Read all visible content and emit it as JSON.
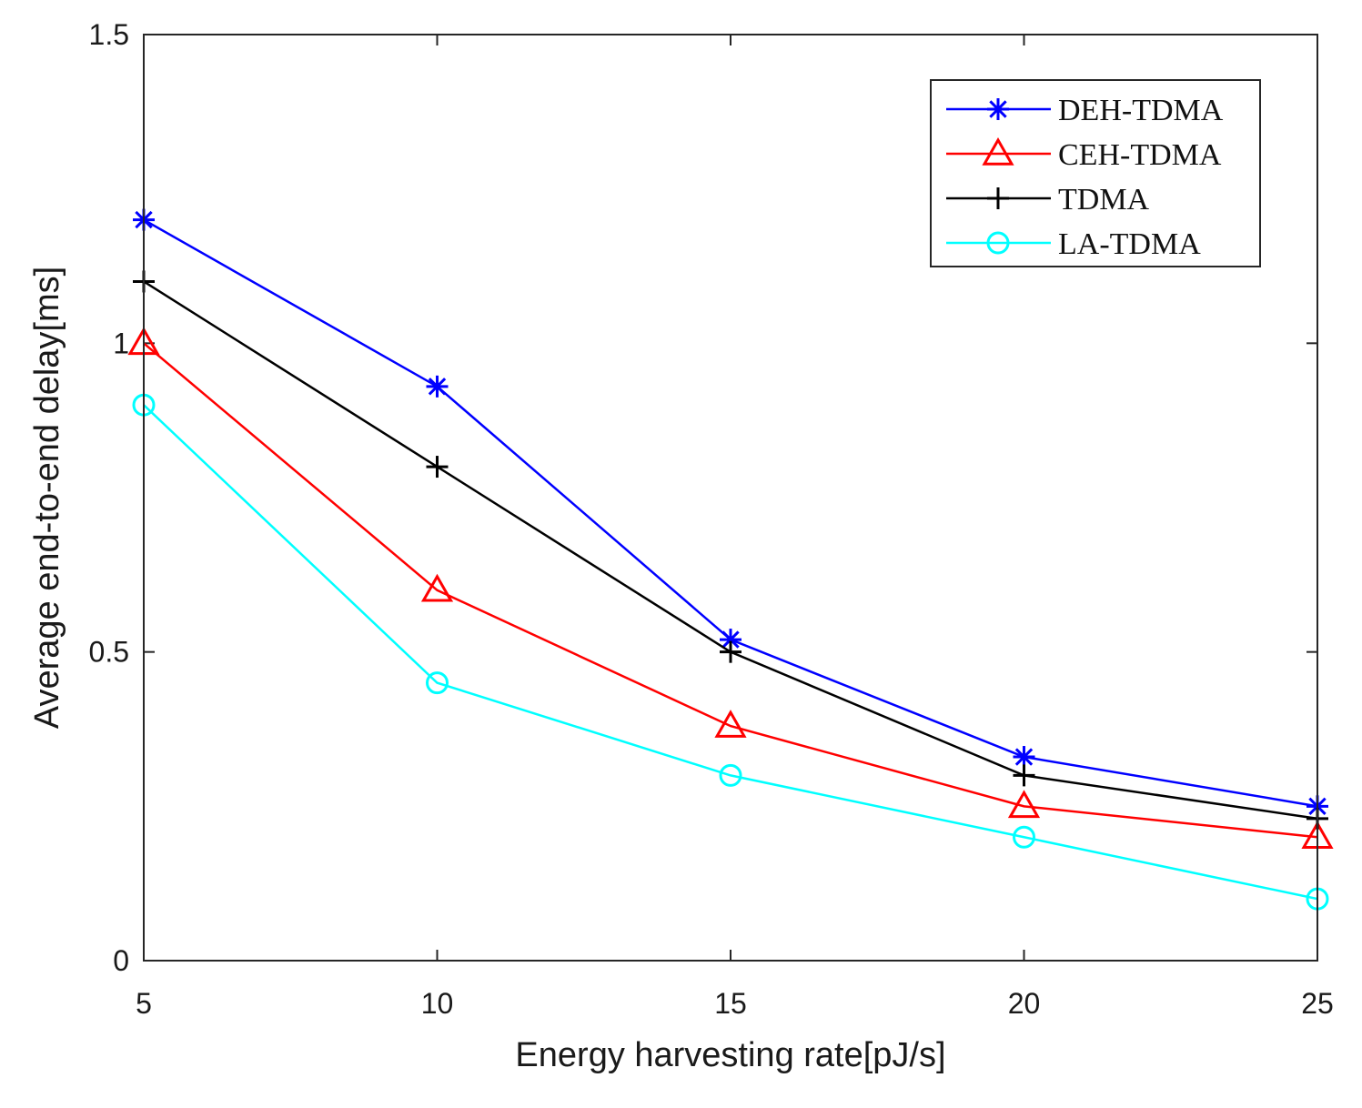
{
  "chart_data": {
    "type": "line",
    "title": "",
    "xlabel": "Energy harvesting rate[pJ/s]",
    "ylabel": "Average end-to-end delay[ms]",
    "x": [
      5,
      10,
      15,
      20,
      25
    ],
    "xlim": [
      5,
      25
    ],
    "ylim": [
      0,
      1.5
    ],
    "xticks": [
      "5",
      "10",
      "15",
      "20",
      "25"
    ],
    "yticks": [
      "0",
      "0.5",
      "1",
      "1.5"
    ],
    "grid": false,
    "legend_position": "top-right",
    "series": [
      {
        "name": "DEH-TDMA",
        "color": "#0000ff",
        "marker": "asterisk",
        "values": [
          1.2,
          0.93,
          0.52,
          0.33,
          0.25
        ]
      },
      {
        "name": "CEH-TDMA",
        "color": "#ff0000",
        "marker": "triangle",
        "values": [
          1.0,
          0.6,
          0.38,
          0.25,
          0.2
        ]
      },
      {
        "name": "TDMA",
        "color": "#000000",
        "marker": "plus",
        "values": [
          1.1,
          0.8,
          0.5,
          0.3,
          0.23
        ]
      },
      {
        "name": "LA-TDMA",
        "color": "#00ffff",
        "marker": "circle",
        "values": [
          0.9,
          0.45,
          0.3,
          0.2,
          0.1
        ]
      }
    ]
  }
}
